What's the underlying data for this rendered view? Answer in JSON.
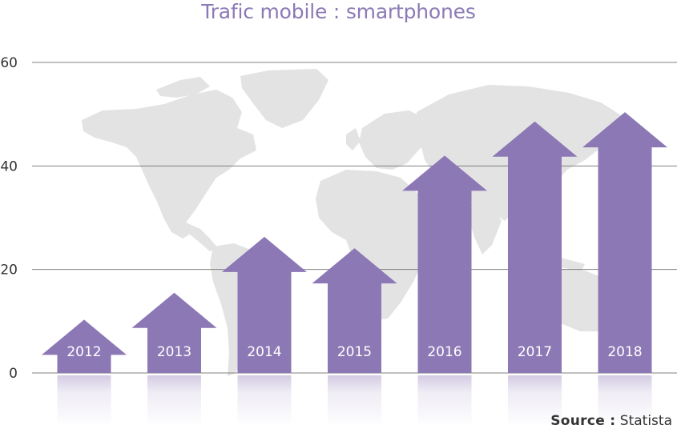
{
  "title": "Trafic mobile : smartphones",
  "source": {
    "label": "Source :",
    "value": "Statista"
  },
  "colors": {
    "title": "#8c7ab6",
    "arrow": "#8c78b5",
    "grid": "#808080",
    "map": "#e3e3e3",
    "tick": "#333333",
    "arrow_label": "#ffffff"
  },
  "chart_data": {
    "type": "bar",
    "style": "arrows",
    "categories": [
      "2012",
      "2013",
      "2014",
      "2015",
      "2016",
      "2017",
      "2018"
    ],
    "values": [
      10.3,
      15.5,
      26.3,
      24.1,
      42,
      48.6,
      50.4
    ],
    "ylim": [
      0,
      60
    ],
    "yticks": [
      0,
      20,
      40,
      60
    ],
    "grid": true,
    "legend": "none",
    "background": "world-map"
  }
}
